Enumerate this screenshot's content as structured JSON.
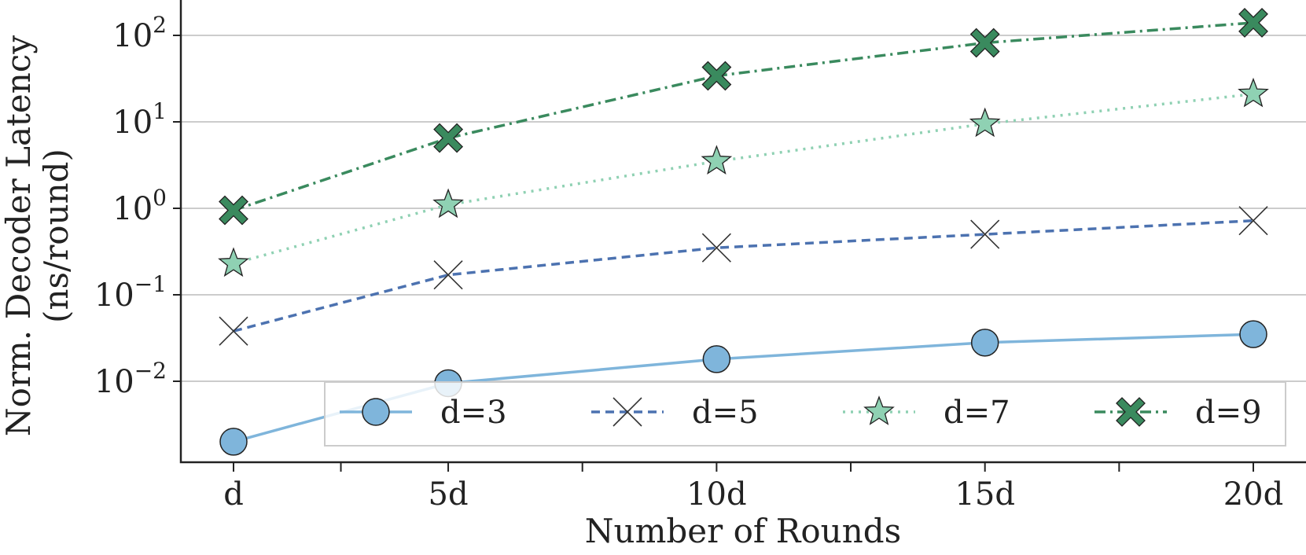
{
  "chart_data": {
    "type": "line",
    "title": "",
    "xlabel": "Number of Rounds",
    "ylabel_line1": "Norm. Decoder Latency",
    "ylabel_line2": "(ns/round)",
    "yscale": "log",
    "ylim": [
      0.0011,
      250
    ],
    "x_ticks": [
      "d",
      "5d",
      "10d",
      "15d",
      "20d"
    ],
    "x_values": [
      1,
      5,
      10,
      15,
      20
    ],
    "y_ticks": [
      {
        "value": 0.01,
        "base": "10",
        "exp": "−2"
      },
      {
        "value": 0.1,
        "base": "10",
        "exp": "−1"
      },
      {
        "value": 1,
        "base": "10",
        "exp": "0"
      },
      {
        "value": 10,
        "base": "10",
        "exp": "1"
      },
      {
        "value": 100,
        "base": "10",
        "exp": "2"
      }
    ],
    "grid": "horizontal",
    "legend_position": "lower-right",
    "series": [
      {
        "name": "d=3",
        "color": "#7fb5db",
        "marker": "circle",
        "dash": "solid",
        "values": [
          0.002,
          0.0095,
          0.018,
          0.028,
          0.035
        ]
      },
      {
        "name": "d=5",
        "color": "#4c72b0",
        "marker": "x",
        "dash": "dashed",
        "values": [
          0.038,
          0.17,
          0.35,
          0.5,
          0.72
        ]
      },
      {
        "name": "d=7",
        "color": "#8fd1b3",
        "marker": "star",
        "dash": "dotted",
        "values": [
          0.23,
          1.1,
          3.5,
          9.5,
          21
        ]
      },
      {
        "name": "d=9",
        "color": "#3a8a5e",
        "marker": "bigx",
        "dash": "dashdot",
        "values": [
          0.95,
          6.5,
          34,
          82,
          140
        ]
      }
    ]
  }
}
